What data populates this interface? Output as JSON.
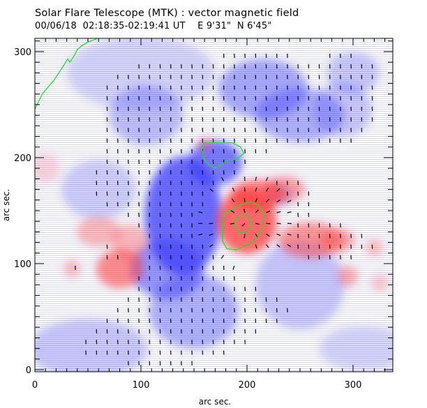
{
  "header": {
    "title": "Solar Flare Telescope (MTK) : vector magnetic field",
    "date": "00/06/18",
    "time_range": "02:18:35-02:19:41 UT",
    "position_ew": "E 9'31\"",
    "position_ns": "N 6'45\""
  },
  "chart_data": {
    "type": "heatmap",
    "title": "Solar Flare Telescope (MTK) : vector magnetic field",
    "subtitle": "00/06/18  02:18:35-02:19:41 UT    E 9'31\"  N 6'45\"",
    "xlabel": "arc sec.",
    "ylabel": "arc sec.",
    "xlim": [
      0,
      338
    ],
    "ylim": [
      0,
      312
    ],
    "xticks": [
      0,
      100,
      200,
      300
    ],
    "yticks": [
      0,
      100,
      200,
      300
    ],
    "xtick_labels": [
      "0",
      "100",
      "200",
      "300"
    ],
    "ytick_labels": [
      "0",
      "100",
      "200",
      "300"
    ],
    "colors": {
      "positive_polarity": "#ff3b3b",
      "negative_polarity": "#3b3bff",
      "contour": "#22dd22",
      "vectors": "#000000"
    },
    "positive_regions": [
      {
        "x": 200,
        "y": 140,
        "sx": 20,
        "sy": 22,
        "amp": 1.0
      },
      {
        "x": 210,
        "y": 165,
        "sx": 18,
        "sy": 10,
        "amp": 0.85
      },
      {
        "x": 235,
        "y": 170,
        "sx": 14,
        "sy": 9,
        "amp": 0.6
      },
      {
        "x": 260,
        "y": 122,
        "sx": 22,
        "sy": 12,
        "amp": 0.7
      },
      {
        "x": 285,
        "y": 122,
        "sx": 12,
        "sy": 8,
        "amp": 0.55
      },
      {
        "x": 80,
        "y": 95,
        "sx": 16,
        "sy": 13,
        "amp": 0.75
      },
      {
        "x": 60,
        "y": 130,
        "sx": 15,
        "sy": 10,
        "amp": 0.45
      },
      {
        "x": 90,
        "y": 120,
        "sx": 12,
        "sy": 12,
        "amp": 0.45
      },
      {
        "x": 35,
        "y": 95,
        "sx": 6,
        "sy": 6,
        "amp": 0.4
      },
      {
        "x": 295,
        "y": 88,
        "sx": 7,
        "sy": 7,
        "amp": 0.5
      },
      {
        "x": 320,
        "y": 115,
        "sx": 6,
        "sy": 6,
        "amp": 0.4
      },
      {
        "x": 325,
        "y": 82,
        "sx": 6,
        "sy": 6,
        "amp": 0.35
      },
      {
        "x": 160,
        "y": 212,
        "sx": 5,
        "sy": 5,
        "amp": 0.5
      },
      {
        "x": 10,
        "y": 190,
        "sx": 10,
        "sy": 10,
        "amp": 0.25
      }
    ],
    "negative_regions": [
      {
        "x": 140,
        "y": 145,
        "sx": 26,
        "sy": 40,
        "amp": 1.0
      },
      {
        "x": 170,
        "y": 195,
        "sx": 18,
        "sy": 15,
        "amp": 0.9
      },
      {
        "x": 125,
        "y": 95,
        "sx": 25,
        "sy": 20,
        "amp": 0.7
      },
      {
        "x": 150,
        "y": 55,
        "sx": 30,
        "sy": 25,
        "amp": 0.5
      },
      {
        "x": 215,
        "y": 265,
        "sx": 30,
        "sy": 20,
        "amp": 0.55
      },
      {
        "x": 250,
        "y": 240,
        "sx": 30,
        "sy": 18,
        "amp": 0.5
      },
      {
        "x": 105,
        "y": 240,
        "sx": 25,
        "sy": 20,
        "amp": 0.4
      },
      {
        "x": 230,
        "y": 165,
        "sx": 9,
        "sy": 7,
        "amp": 0.45
      },
      {
        "x": 290,
        "y": 245,
        "sx": 20,
        "sy": 18,
        "amp": 0.35
      },
      {
        "x": 300,
        "y": 280,
        "sx": 18,
        "sy": 14,
        "amp": 0.35
      },
      {
        "x": 50,
        "y": 20,
        "sx": 40,
        "sy": 20,
        "amp": 0.35
      },
      {
        "x": 250,
        "y": 80,
        "sx": 30,
        "sy": 30,
        "amp": 0.35
      },
      {
        "x": 100,
        "y": 280,
        "sx": 50,
        "sy": 25,
        "amp": 0.25
      },
      {
        "x": 310,
        "y": 20,
        "sx": 30,
        "sy": 15,
        "amp": 0.25
      },
      {
        "x": 60,
        "y": 170,
        "sx": 25,
        "sy": 20,
        "amp": 0.3
      }
    ],
    "contours": [
      {
        "name": "limb-contour",
        "points": [
          [
            0,
            246
          ],
          [
            3,
            252
          ],
          [
            7,
            260
          ],
          [
            12,
            266
          ],
          [
            18,
            273
          ],
          [
            22,
            279
          ],
          [
            26,
            285
          ],
          [
            29,
            290
          ],
          [
            31,
            293
          ],
          [
            33,
            290
          ],
          [
            35,
            293
          ],
          [
            37,
            296
          ],
          [
            40,
            302
          ],
          [
            45,
            306
          ],
          [
            50,
            309
          ],
          [
            58,
            312
          ]
        ]
      },
      {
        "name": "negative-contour",
        "points": [
          [
            157,
            210
          ],
          [
            160,
            198
          ],
          [
            164,
            193
          ],
          [
            170,
            190
          ],
          [
            177,
            194
          ],
          [
            183,
            198
          ],
          [
            190,
            198
          ],
          [
            197,
            204
          ],
          [
            194,
            210
          ],
          [
            186,
            214
          ],
          [
            176,
            214
          ],
          [
            167,
            214
          ],
          [
            160,
            214
          ],
          [
            157,
            210
          ]
        ]
      },
      {
        "name": "positive-outer-contour",
        "points": [
          [
            178,
            148
          ],
          [
            186,
            151
          ],
          [
            195,
            156
          ],
          [
            203,
            158
          ],
          [
            211,
            155
          ],
          [
            216,
            146
          ],
          [
            215,
            135
          ],
          [
            210,
            125
          ],
          [
            201,
            118
          ],
          [
            190,
            113
          ],
          [
            181,
            114
          ],
          [
            177,
            121
          ],
          [
            177,
            133
          ],
          [
            178,
            148
          ]
        ]
      },
      {
        "name": "positive-inner-contour",
        "points": [
          [
            188,
            140
          ],
          [
            193,
            146
          ],
          [
            199,
            146
          ],
          [
            203,
            142
          ],
          [
            204,
            134
          ],
          [
            200,
            130
          ],
          [
            194,
            129
          ],
          [
            190,
            132
          ],
          [
            188,
            140
          ]
        ]
      }
    ],
    "vector_grid_note": "Transverse field vectors (black line segments) plotted where field strength exceeds threshold"
  }
}
